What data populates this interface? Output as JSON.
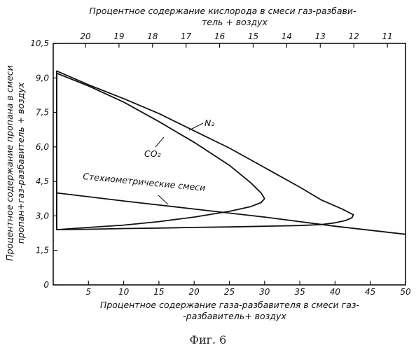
{
  "caption": "Фиг. 6",
  "chart_data": {
    "type": "line",
    "xlabel_bottom": [
      "Процентное содержание газа-разбавителя в смеси газ-",
      "-разбавитель+ воздух"
    ],
    "xlabel_top": [
      "Процентное содержание кислорода в смеси газ-разбави-",
      "тель + воздух"
    ],
    "ylabel": [
      "Процентное содержание пропана в смеси",
      "пропан+газ-разбавитель + воздух"
    ],
    "x_ticks": [
      "5",
      "10",
      "15",
      "20",
      "25",
      "30",
      "35",
      "40",
      "45",
      "50"
    ],
    "x_origin_label": "0",
    "xlim": [
      0,
      50
    ],
    "top_ticks": [
      "20",
      "19",
      "18",
      "17",
      "16",
      "15",
      "14",
      "13",
      "12",
      "11"
    ],
    "y_ticks": [
      "0",
      "1,5",
      "3,0",
      "4,5",
      "6,0",
      "7,5",
      "9,0",
      "10,5"
    ],
    "ylim": [
      0,
      10.5
    ],
    "annotations": {
      "stoich": "Стехиометрические смеси",
      "n2": "N₂",
      "co2": "CO₂"
    },
    "series": [
      {
        "name": "N₂",
        "x": [
          42.6,
          41,
          38,
          35,
          30,
          25,
          20,
          15,
          10,
          5,
          0.5,
          0.5,
          5,
          10,
          15,
          20,
          25,
          30,
          35,
          38,
          40,
          41.5,
          42.4,
          42.6
        ],
        "y": [
          3.05,
          3.3,
          3.7,
          4.25,
          5.1,
          5.95,
          6.7,
          7.45,
          8.1,
          8.7,
          9.3,
          2.4,
          2.42,
          2.45,
          2.47,
          2.5,
          2.52,
          2.55,
          2.58,
          2.62,
          2.7,
          2.8,
          2.92,
          3.05
        ]
      },
      {
        "name": "CO₂",
        "x": [
          30.0,
          29.5,
          28,
          25,
          20,
          15,
          10,
          5,
          0.5,
          0.5,
          5,
          10,
          15,
          20,
          25,
          28,
          29.5,
          30.0
        ],
        "y": [
          3.75,
          4.0,
          4.45,
          5.2,
          6.2,
          7.1,
          7.95,
          8.65,
          9.2,
          2.4,
          2.5,
          2.6,
          2.75,
          2.95,
          3.2,
          3.4,
          3.58,
          3.75
        ]
      },
      {
        "name": "Стехиометрические смеси",
        "x": [
          0.5,
          10,
          20,
          30,
          40,
          50
        ],
        "y": [
          4.0,
          3.65,
          3.3,
          2.95,
          2.55,
          2.2
        ]
      }
    ]
  }
}
